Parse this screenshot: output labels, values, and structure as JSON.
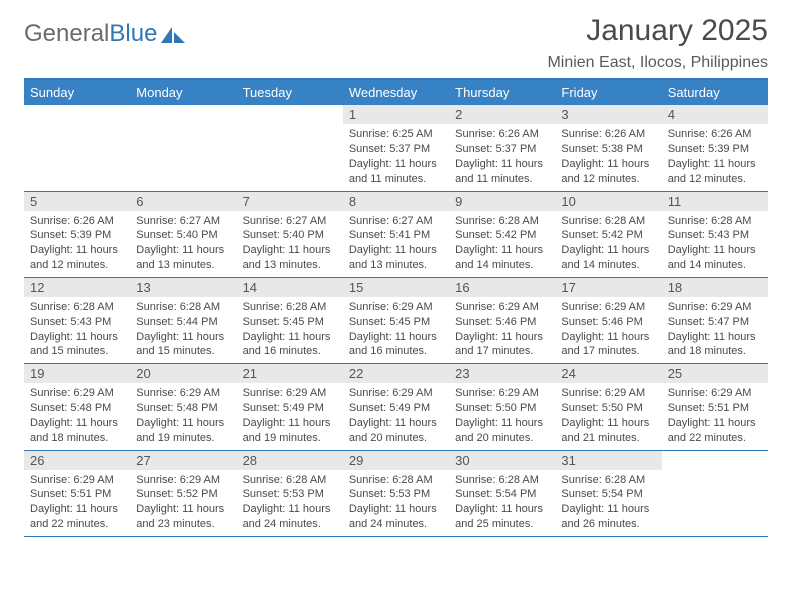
{
  "logo": {
    "text1": "General",
    "text2": "Blue"
  },
  "header": {
    "month_title": "January 2025",
    "location": "Minien East, Ilocos, Philippines"
  },
  "calendar": {
    "day_headers": [
      "Sunday",
      "Monday",
      "Tuesday",
      "Wednesday",
      "Thursday",
      "Friday",
      "Saturday"
    ],
    "colors": {
      "header_bg": "#3682c4",
      "header_fg": "#ffffff",
      "border": "#2f78b8",
      "daynum_bg": "#e8e8e8",
      "text": "#4a4a4a"
    },
    "weeks": [
      [
        null,
        null,
        null,
        {
          "n": "1",
          "sunrise": "6:25 AM",
          "sunset": "5:37 PM",
          "daylight": "11 hours and 11 minutes."
        },
        {
          "n": "2",
          "sunrise": "6:26 AM",
          "sunset": "5:37 PM",
          "daylight": "11 hours and 11 minutes."
        },
        {
          "n": "3",
          "sunrise": "6:26 AM",
          "sunset": "5:38 PM",
          "daylight": "11 hours and 12 minutes."
        },
        {
          "n": "4",
          "sunrise": "6:26 AM",
          "sunset": "5:39 PM",
          "daylight": "11 hours and 12 minutes."
        }
      ],
      [
        {
          "n": "5",
          "sunrise": "6:26 AM",
          "sunset": "5:39 PM",
          "daylight": "11 hours and 12 minutes."
        },
        {
          "n": "6",
          "sunrise": "6:27 AM",
          "sunset": "5:40 PM",
          "daylight": "11 hours and 13 minutes."
        },
        {
          "n": "7",
          "sunrise": "6:27 AM",
          "sunset": "5:40 PM",
          "daylight": "11 hours and 13 minutes."
        },
        {
          "n": "8",
          "sunrise": "6:27 AM",
          "sunset": "5:41 PM",
          "daylight": "11 hours and 13 minutes."
        },
        {
          "n": "9",
          "sunrise": "6:28 AM",
          "sunset": "5:42 PM",
          "daylight": "11 hours and 14 minutes."
        },
        {
          "n": "10",
          "sunrise": "6:28 AM",
          "sunset": "5:42 PM",
          "daylight": "11 hours and 14 minutes."
        },
        {
          "n": "11",
          "sunrise": "6:28 AM",
          "sunset": "5:43 PM",
          "daylight": "11 hours and 14 minutes."
        }
      ],
      [
        {
          "n": "12",
          "sunrise": "6:28 AM",
          "sunset": "5:43 PM",
          "daylight": "11 hours and 15 minutes."
        },
        {
          "n": "13",
          "sunrise": "6:28 AM",
          "sunset": "5:44 PM",
          "daylight": "11 hours and 15 minutes."
        },
        {
          "n": "14",
          "sunrise": "6:28 AM",
          "sunset": "5:45 PM",
          "daylight": "11 hours and 16 minutes."
        },
        {
          "n": "15",
          "sunrise": "6:29 AM",
          "sunset": "5:45 PM",
          "daylight": "11 hours and 16 minutes."
        },
        {
          "n": "16",
          "sunrise": "6:29 AM",
          "sunset": "5:46 PM",
          "daylight": "11 hours and 17 minutes."
        },
        {
          "n": "17",
          "sunrise": "6:29 AM",
          "sunset": "5:46 PM",
          "daylight": "11 hours and 17 minutes."
        },
        {
          "n": "18",
          "sunrise": "6:29 AM",
          "sunset": "5:47 PM",
          "daylight": "11 hours and 18 minutes."
        }
      ],
      [
        {
          "n": "19",
          "sunrise": "6:29 AM",
          "sunset": "5:48 PM",
          "daylight": "11 hours and 18 minutes."
        },
        {
          "n": "20",
          "sunrise": "6:29 AM",
          "sunset": "5:48 PM",
          "daylight": "11 hours and 19 minutes."
        },
        {
          "n": "21",
          "sunrise": "6:29 AM",
          "sunset": "5:49 PM",
          "daylight": "11 hours and 19 minutes."
        },
        {
          "n": "22",
          "sunrise": "6:29 AM",
          "sunset": "5:49 PM",
          "daylight": "11 hours and 20 minutes."
        },
        {
          "n": "23",
          "sunrise": "6:29 AM",
          "sunset": "5:50 PM",
          "daylight": "11 hours and 20 minutes."
        },
        {
          "n": "24",
          "sunrise": "6:29 AM",
          "sunset": "5:50 PM",
          "daylight": "11 hours and 21 minutes."
        },
        {
          "n": "25",
          "sunrise": "6:29 AM",
          "sunset": "5:51 PM",
          "daylight": "11 hours and 22 minutes."
        }
      ],
      [
        {
          "n": "26",
          "sunrise": "6:29 AM",
          "sunset": "5:51 PM",
          "daylight": "11 hours and 22 minutes."
        },
        {
          "n": "27",
          "sunrise": "6:29 AM",
          "sunset": "5:52 PM",
          "daylight": "11 hours and 23 minutes."
        },
        {
          "n": "28",
          "sunrise": "6:28 AM",
          "sunset": "5:53 PM",
          "daylight": "11 hours and 24 minutes."
        },
        {
          "n": "29",
          "sunrise": "6:28 AM",
          "sunset": "5:53 PM",
          "daylight": "11 hours and 24 minutes."
        },
        {
          "n": "30",
          "sunrise": "6:28 AM",
          "sunset": "5:54 PM",
          "daylight": "11 hours and 25 minutes."
        },
        {
          "n": "31",
          "sunrise": "6:28 AM",
          "sunset": "5:54 PM",
          "daylight": "11 hours and 26 minutes."
        },
        null
      ]
    ]
  }
}
